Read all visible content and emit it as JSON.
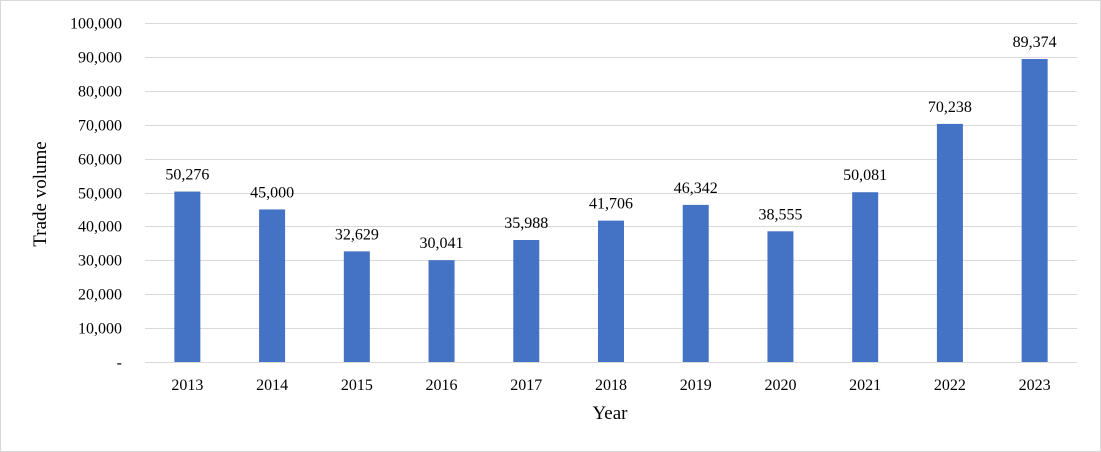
{
  "chart_data": {
    "type": "bar",
    "title": "",
    "xlabel": "Year",
    "ylabel": "Trade volume",
    "categories": [
      "2013",
      "2014",
      "2015",
      "2016",
      "2017",
      "2018",
      "2019",
      "2020",
      "2021",
      "2022",
      "2023"
    ],
    "values": [
      50276,
      45000,
      32629,
      30041,
      35988,
      41706,
      46342,
      38555,
      50081,
      70238,
      89374
    ],
    "data_labels": [
      "50,276",
      "45,000",
      "32,629",
      "30,041",
      "35,988",
      "41,706",
      "46,342",
      "38,555",
      "50,081",
      "70,238",
      "89,374"
    ],
    "ylim": [
      0,
      100000
    ],
    "y_ticks": [
      0,
      10000,
      20000,
      30000,
      40000,
      50000,
      60000,
      70000,
      80000,
      90000,
      100000
    ],
    "y_tick_labels": [
      "-",
      "10,000",
      "20,000",
      "30,000",
      "40,000",
      "50,000",
      "60,000",
      "70,000",
      "80,000",
      "90,000",
      "100,000"
    ],
    "grid": true,
    "legend": "none",
    "bar_color": "#4472c4"
  }
}
